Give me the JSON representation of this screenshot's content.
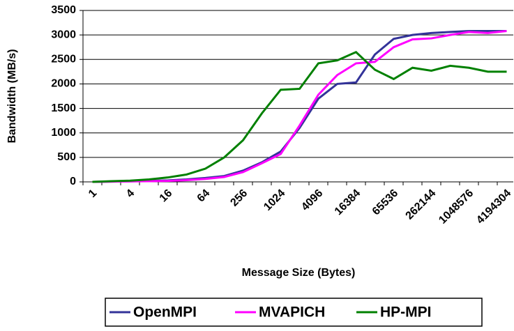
{
  "chart_data": {
    "type": "line",
    "x_label": "Message Size (Bytes)",
    "y_label": "Bandwidth (MB/s)",
    "categories": [
      "1",
      null,
      "4",
      null,
      "16",
      null,
      "64",
      null,
      "256",
      null,
      "1024",
      null,
      "4096",
      null,
      "16384",
      null,
      "65536",
      null,
      "262144",
      null,
      "1048576",
      null,
      "4194304"
    ],
    "series": [
      {
        "name": "OpenMPI",
        "color": "#333399",
        "values": [
          0,
          5,
          10,
          20,
          30,
          50,
          80,
          120,
          230,
          400,
          620,
          1100,
          1700,
          2000,
          2030,
          2600,
          2920,
          3000,
          3040,
          3060,
          3080,
          3080,
          3080
        ]
      },
      {
        "name": "MVAPICH",
        "color": "#ff00ff",
        "values": [
          0,
          5,
          10,
          15,
          20,
          35,
          60,
          100,
          200,
          380,
          570,
          1150,
          1780,
          2180,
          2420,
          2450,
          2750,
          2910,
          2930,
          3000,
          3060,
          3040,
          3080
        ]
      },
      {
        "name": "HP-MPI",
        "color": "#008000",
        "values": [
          0,
          15,
          25,
          50,
          90,
          150,
          270,
          500,
          850,
          1400,
          1880,
          1900,
          2420,
          2480,
          2650,
          2290,
          2100,
          2330,
          2270,
          2370,
          2330,
          2250,
          2250
        ]
      }
    ],
    "ylim": [
      0,
      3500
    ],
    "yticks": [
      0,
      500,
      1000,
      1500,
      2000,
      2500,
      3000,
      3500
    ],
    "grid": true,
    "legend": "bottom"
  }
}
